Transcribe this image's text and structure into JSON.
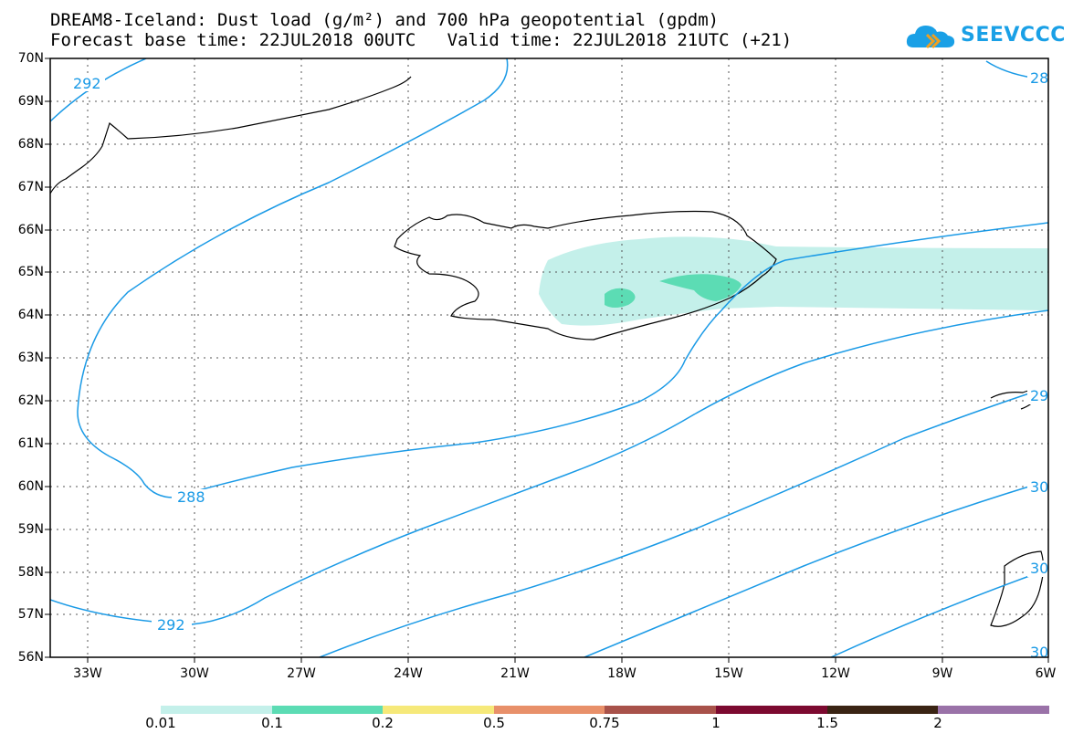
{
  "title": {
    "line1": "DREAM8-Iceland: Dust load (g/m²) and 700 hPa geopotential (gpdm)",
    "line2": "Forecast base time: 22JUL2018 00UTC   Valid time: 22JUL2018 21UTC (+21)"
  },
  "logo": {
    "text": "SEEVCCC",
    "icon": "cloud-icon",
    "color": "#1aa0e6"
  },
  "axes": {
    "lat_labels": [
      "70N",
      "69N",
      "68N",
      "67N",
      "66N",
      "65N",
      "64N",
      "63N",
      "62N",
      "61N",
      "60N",
      "59N",
      "58N",
      "57N",
      "56N"
    ],
    "lon_labels": [
      "33W",
      "30W",
      "27W",
      "24W",
      "21W",
      "18W",
      "15W",
      "12W",
      "9W",
      "6W"
    ],
    "lat_range": [
      56,
      70
    ],
    "lon_range": [
      -34.5,
      -6
    ]
  },
  "contours": {
    "labels": [
      "292",
      "288",
      "292",
      "28",
      "29",
      "30",
      "30",
      "30"
    ],
    "color": "#1a9ae6"
  },
  "colorbar": {
    "labels": [
      "0.01",
      "0.1",
      "0.2",
      "0.5",
      "0.75",
      "1",
      "1.5",
      "2"
    ],
    "colors": [
      "#c4f0ea",
      "#5cdcb4",
      "#f6e97a",
      "#e8906a",
      "#a8524a",
      "#7c0a30",
      "#3a2414",
      "#9a72a8"
    ]
  },
  "grid": "dotted"
}
